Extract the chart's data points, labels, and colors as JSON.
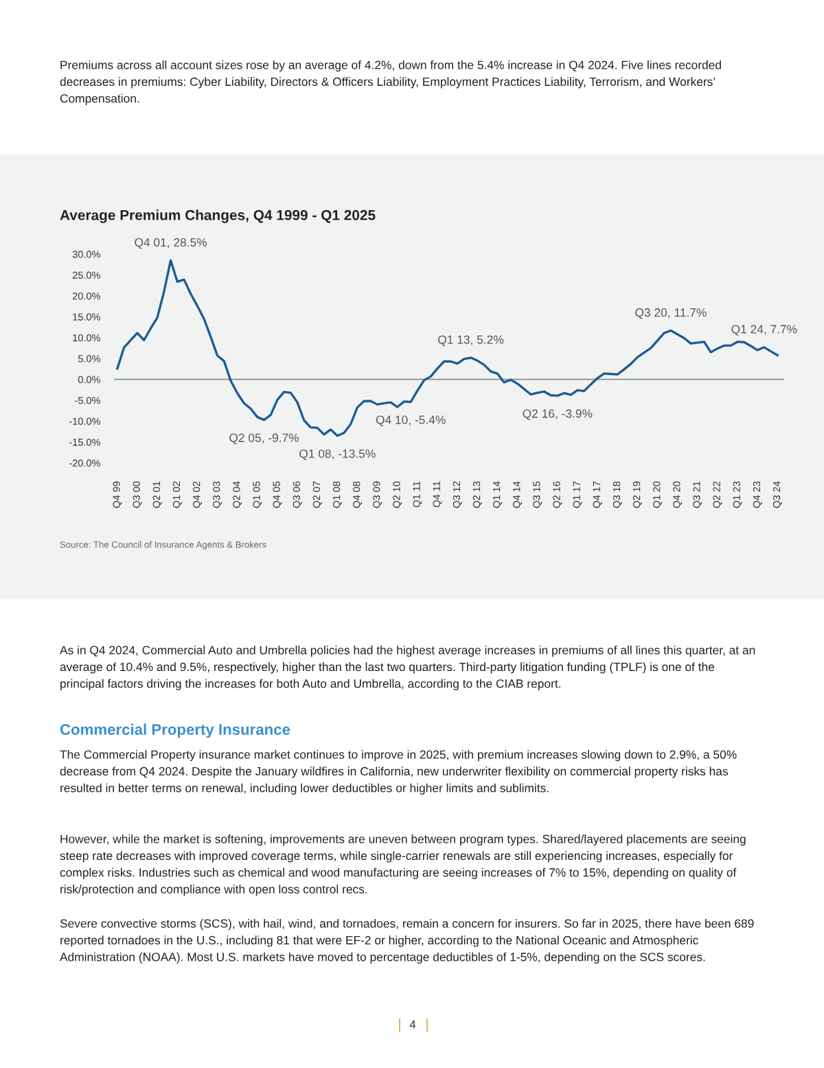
{
  "chart_data": {
    "type": "line",
    "title": "Average Premium Changes, Q4 1999 - Q1 2025",
    "categories": [
      "Q4 99",
      null,
      null,
      "Q3 00",
      null,
      null,
      "Q2 01",
      null,
      null,
      "Q1 02",
      null,
      null,
      "Q4 02",
      null,
      null,
      "Q3 03",
      null,
      null,
      "Q2 04",
      null,
      null,
      "Q1 05",
      null,
      null,
      "Q4 05",
      null,
      null,
      "Q3 06",
      null,
      null,
      "Q2 07",
      null,
      null,
      "Q1 08",
      null,
      null,
      "Q4 08",
      null,
      null,
      "Q3 09",
      null,
      null,
      "Q2 10",
      null,
      null,
      "Q1 11",
      null,
      null,
      "Q4 11",
      null,
      null,
      "Q3 12",
      null,
      null,
      "Q2 13",
      null,
      null,
      "Q1 14",
      null,
      null,
      "Q4 14",
      null,
      null,
      "Q3 15",
      null,
      null,
      "Q2 16",
      null,
      null,
      "Q1 17",
      null,
      null,
      "Q4 17",
      null,
      null,
      "Q3 18",
      null,
      null,
      "Q2 19",
      null,
      null,
      "Q1 20",
      null,
      null,
      "Q4 20",
      null,
      null,
      "Q3 21",
      null,
      null,
      "Q2 22",
      null,
      null,
      "Q1 23",
      null,
      null,
      "Q4 23",
      null,
      null,
      "Q3 24"
    ],
    "values": [
      2.6,
      7.6,
      9.4,
      11.1,
      9.4,
      12.2,
      14.8,
      21.0,
      28.5,
      23.4,
      23.9,
      20.5,
      17.6,
      14.5,
      10.2,
      5.7,
      4.4,
      -0.3,
      -3.3,
      -5.7,
      -7.0,
      -9.0,
      -9.7,
      -8.5,
      -4.9,
      -3.0,
      -3.2,
      -5.5,
      -9.8,
      -11.5,
      -11.6,
      -13.2,
      -12.0,
      -13.5,
      -12.8,
      -10.7,
      -6.7,
      -5.2,
      -5.2,
      -6.0,
      -5.7,
      -5.5,
      -6.6,
      -5.3,
      -5.4,
      -2.7,
      -0.2,
      0.7,
      2.6,
      4.3,
      4.3,
      3.8,
      4.9,
      5.2,
      4.5,
      3.5,
      1.9,
      1.4,
      -0.7,
      -0.1,
      -1.0,
      -2.3,
      -3.6,
      -3.2,
      -2.9,
      -3.8,
      -3.9,
      -3.3,
      -3.7,
      -2.6,
      -2.8,
      -1.2,
      0.3,
      1.4,
      1.3,
      1.2,
      2.4,
      3.7,
      5.3,
      6.4,
      7.5,
      9.3,
      11.1,
      11.7,
      10.8,
      9.9,
      8.6,
      8.8,
      9.0,
      6.5,
      7.4,
      8.1,
      8.1,
      9.0,
      8.9,
      8.0,
      7.0,
      7.7,
      6.7,
      5.8
    ],
    "color": "#1f5c91",
    "marker": "none",
    "line_style": "solid",
    "ylim": [
      -20,
      30
    ],
    "yticks": [
      {
        "value": 30,
        "label": "30.0%"
      },
      {
        "value": 25,
        "label": "25.0%"
      },
      {
        "value": 20,
        "label": "20.0%"
      },
      {
        "value": 15,
        "label": "15.0%"
      },
      {
        "value": 10,
        "label": "10.0%"
      },
      {
        "value": 5,
        "label": "5.0%"
      },
      {
        "value": 0,
        "label": "0.0%"
      },
      {
        "value": -5,
        "label": "-5.0%"
      },
      {
        "value": -10,
        "label": "-10.0%"
      },
      {
        "value": -15,
        "label": "-15.0%"
      },
      {
        "value": -20,
        "label": "-20.0%"
      }
    ],
    "grid": false,
    "ref_lines": [
      {
        "axis": "y",
        "value": 0,
        "color": "#8c8c8c"
      }
    ],
    "annotations": [
      {
        "text": "Q4 01, 28.5%",
        "y": 28.5
      },
      {
        "text": "Q2 05, -9.7%",
        "y": -9.7
      },
      {
        "text": "Q1 08, -13.5%",
        "y": -13.5
      },
      {
        "text": "Q4 10, -5.4%",
        "y": -5.4
      },
      {
        "text": "Q1 13, 5.2%",
        "y": 5.2
      },
      {
        "text": "Q2 16, -3.9%",
        "y": -3.9
      },
      {
        "text": "Q3 20, 11.7%",
        "y": 11.7
      },
      {
        "text": "Q1 24, 7.7%",
        "y": 7.7
      },
      "Premiums across all account sizes rose by an average of 4.2%, down from the 5.4% increase in Q4 2024. Five lines recorded decreases in premiums: Cyber Liability, Directors & Officers Liability, Employment Practices Liability, Terrorism, and Workers’ Compensation.",
      "Source: The Council of Insurance Agents & Brokers",
      "As in Q4 2024, Commercial Auto and Umbrella policies had the highest average increases in premiums of all lines this quarter, at an average of 10.4% and 9.5%, respectively, higher than the last two quarters. Third-party litigation funding (TPLF) is one of the principal factors driving the increases for both Auto and Umbrella, according to the CIAB report.",
      "Commercial Property Insurance",
      "The Commercial Property insurance market continues to improve in 2025, with premium increases slowing down to 2.9%, a 50% decrease from Q4 2024. Despite the January wildfires in California, new underwriter flexibility on commercial property risks has resulted in better terms on renewal, including lower deductibles or higher limits and sublimits.",
      "However, while the market is softening, improvements are uneven between program types. Shared/layered placements are seeing steep rate decreases with improved coverage terms, while single-carrier renewals are still experiencing increases, especially for complex risks. Industries such as chemical and wood manufacturing are seeing increases of 7% to 15%, depending on quality of risk/protection and compliance with open loss control recs.",
      "Severe convective storms (SCS), with hail, wind, and tornadoes, remain a concern for insurers. So far in 2025, there have been 689 reported tornadoes in the U.S., including 81 that were EF-2 or higher, according to the National Oceanic and Atmospheric Administration (NOAA). Most U.S. markets have moved to percentage deductibles of 1-5%, depending on the SCS scores.",
      "4"
    ]
  }
}
